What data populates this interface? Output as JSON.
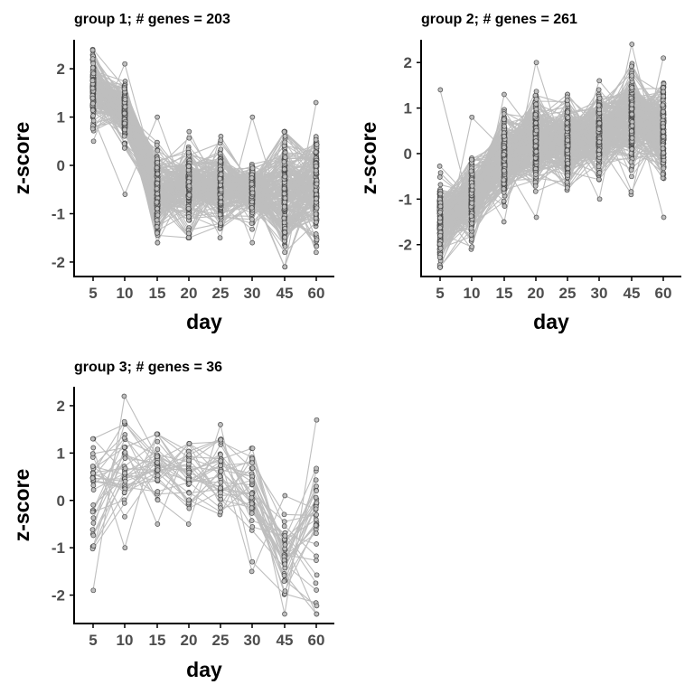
{
  "chart_data": [
    {
      "type": "line",
      "title": "group 1; # genes  = 203",
      "xlabel": "day",
      "ylabel": "z-score",
      "categories": [
        "5",
        "10",
        "15",
        "20",
        "25",
        "30",
        "45",
        "60"
      ],
      "ylim": [
        -2.3,
        2.6
      ],
      "yticks": [
        -2,
        -1,
        0,
        1,
        2
      ],
      "n_series": 203,
      "center": [
        1.6,
        1.1,
        -0.5,
        -0.4,
        -0.4,
        -0.5,
        -0.6,
        -0.4
      ],
      "spread": [
        0.35,
        0.35,
        0.5,
        0.45,
        0.4,
        0.3,
        0.6,
        0.55
      ],
      "range_min": [
        0.5,
        -0.6,
        -1.6,
        -1.5,
        -1.5,
        -1.6,
        -2.1,
        -1.8
      ],
      "range_max": [
        2.4,
        2.1,
        1.0,
        0.7,
        0.6,
        1.0,
        0.7,
        1.3
      ],
      "series_color": "#bebebe",
      "grid": false
    },
    {
      "type": "line",
      "title": "group 2; # genes  = 261",
      "xlabel": "day",
      "ylabel": "z-score",
      "categories": [
        "5",
        "10",
        "15",
        "20",
        "25",
        "30",
        "45",
        "60"
      ],
      "ylim": [
        -2.7,
        2.5
      ],
      "yticks": [
        -2,
        -1,
        0,
        1,
        2
      ],
      "n_series": 261,
      "center": [
        -1.5,
        -1.0,
        -0.1,
        0.2,
        0.3,
        0.4,
        0.8,
        0.5
      ],
      "spread": [
        0.45,
        0.45,
        0.45,
        0.5,
        0.45,
        0.45,
        0.5,
        0.5
      ],
      "range_min": [
        -2.5,
        -2.1,
        -1.5,
        -1.4,
        -0.8,
        -1.0,
        -0.9,
        -1.4
      ],
      "range_max": [
        1.4,
        0.8,
        1.3,
        2.0,
        1.3,
        1.6,
        2.4,
        2.1
      ],
      "series_color": "#bebebe",
      "grid": false
    },
    {
      "type": "line",
      "title": "group 3; # genes  = 36",
      "xlabel": "day",
      "ylabel": "z-score",
      "categories": [
        "5",
        "10",
        "15",
        "20",
        "25",
        "30",
        "45",
        "60"
      ],
      "ylim": [
        -2.6,
        2.4
      ],
      "yticks": [
        -2,
        -1,
        0,
        1,
        2
      ],
      "n_series": 36,
      "center": [
        0.1,
        0.7,
        0.6,
        0.5,
        0.4,
        0.0,
        -1.2,
        -0.7
      ],
      "spread": [
        0.85,
        0.6,
        0.45,
        0.45,
        0.45,
        0.55,
        0.5,
        1.0
      ],
      "range_min": [
        -1.9,
        -1.0,
        -0.5,
        -0.5,
        -0.3,
        -1.5,
        -2.4,
        -2.4
      ],
      "range_max": [
        1.3,
        2.2,
        1.4,
        1.2,
        1.6,
        1.1,
        0.1,
        1.7
      ],
      "series_color": "#bebebe",
      "grid": false
    }
  ]
}
